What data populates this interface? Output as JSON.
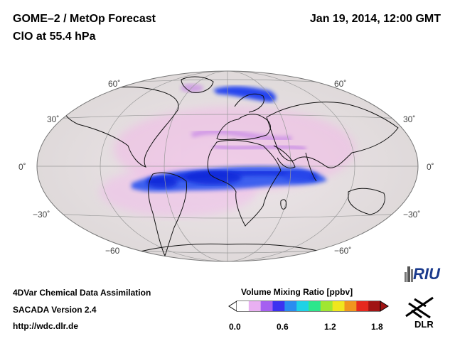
{
  "header": {
    "title_line1": "GOME–2 / MetOp Forecast",
    "title_line2": "ClO at 55.4 hPa",
    "datetime": "Jan 19, 2014, 12:00 GMT"
  },
  "map": {
    "projection": "Hammer-Aitoff",
    "lat_labels": {
      "left": [
        "60˚",
        "30˚",
        "0˚",
        "−30˚",
        "−60"
      ],
      "right": [
        "60˚",
        "30˚",
        "0˚",
        "−30˚",
        "−60˚"
      ]
    },
    "colors": {
      "ocean": "#dcd7d7",
      "high_clo": "#1a40f0"
    }
  },
  "footer": {
    "line1": "4DVar Chemical Data Assimilation",
    "line2": "SACADA Version 2.4",
    "line3": "http://wdc.dlr.de"
  },
  "colorbar": {
    "title": "Volume Mixing Ratio [ppbv]",
    "ticks": [
      "0.0",
      "0.6",
      "1.2",
      "1.8"
    ],
    "colors": [
      "#ffffff",
      "#e9b0f2",
      "#a560f0",
      "#3c32f0",
      "#2a8cf0",
      "#1ed2e6",
      "#2de68c",
      "#a0e632",
      "#f0e61e",
      "#f0961e",
      "#e6281e",
      "#a01414"
    ]
  },
  "logos": {
    "riu": "RIU",
    "dlr": "DLR"
  }
}
